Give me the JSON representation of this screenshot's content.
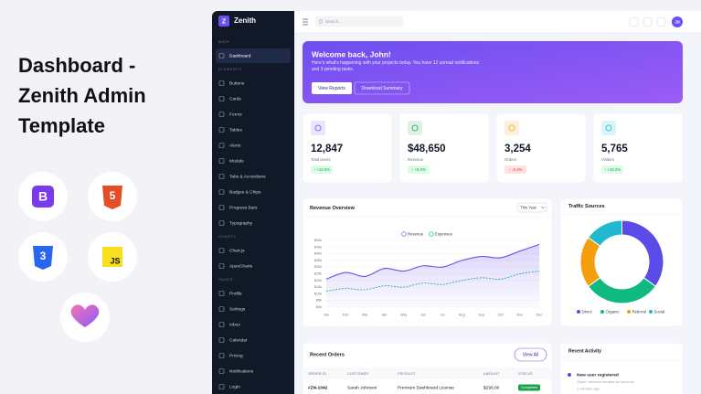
{
  "promo": {
    "title_lines": [
      "Dashboard -",
      "Zenith Admin",
      "Template"
    ],
    "tech_icons": [
      "B",
      "5",
      "3",
      "JS"
    ]
  },
  "sidebar": {
    "brand_logo": "Z",
    "brand": "Zenith",
    "sections": [
      {
        "heading": "MAIN",
        "items": [
          "Dashboard"
        ]
      },
      {
        "heading": "ELEMENTS",
        "items": [
          "Buttons",
          "Cards",
          "Forms",
          "Tables",
          "Alerts",
          "Modals",
          "Tabs & Accordions",
          "Badges & Chips",
          "Progress Bars",
          "Typography"
        ]
      },
      {
        "heading": "CHARTS",
        "items": [
          "Chart.js",
          "ApexCharts"
        ]
      },
      {
        "heading": "PAGES",
        "items": [
          "Profile",
          "Settings",
          "Inbox",
          "Calendar",
          "Pricing",
          "Notifications",
          "Login"
        ]
      }
    ]
  },
  "topbar": {
    "search_placeholder": "Search...",
    "avatar": "JD"
  },
  "welcome": {
    "title": "Welcome back, John!",
    "text": "Here's what's happening with your projects today. You have 12 unread notifications and 3 pending tasks.",
    "buttons": [
      "View Reports",
      "Download Summary"
    ]
  },
  "stats": [
    {
      "value": "12,847",
      "label": "Total Users",
      "change": "↑ +12.5%",
      "trend": "up",
      "color": "#6d4ef0"
    },
    {
      "value": "$48,650",
      "label": "Revenue",
      "change": "↑ +8.3%",
      "trend": "up",
      "color": "#16a34a"
    },
    {
      "value": "3,254",
      "label": "Orders",
      "change": "↓ -2.1%",
      "trend": "down",
      "color": "#f59e0b"
    },
    {
      "value": "5,765",
      "label": "Visitors",
      "change": "↑ +18.2%",
      "trend": "up",
      "color": "#06b6d4"
    }
  ],
  "revenue_chart": {
    "type": "line",
    "title": "Revenue Overview",
    "period": "This Year",
    "categories": [
      "Jan",
      "Feb",
      "Mar",
      "Apr",
      "May",
      "Jun",
      "Jul",
      "Aug",
      "Sep",
      "Oct",
      "Nov",
      "Dec"
    ],
    "series": [
      {
        "name": "Revenue",
        "color": "#6d4ef0",
        "values": [
          21,
          26,
          23,
          29,
          27,
          31,
          30,
          35,
          38,
          37,
          42,
          47
        ]
      },
      {
        "name": "Expenses",
        "color": "#14b8a6",
        "values": [
          12,
          14,
          13,
          16,
          15,
          18,
          17,
          20,
          22,
          21,
          25,
          27
        ]
      }
    ],
    "ylim": [
      0,
      50
    ],
    "yticks": [
      {
        "value": 0,
        "label": "$0k"
      },
      {
        "value": 5,
        "label": "$5k"
      },
      {
        "value": 10,
        "label": "$10k"
      },
      {
        "value": 15,
        "label": "$15k"
      },
      {
        "value": 20,
        "label": "$20k"
      },
      {
        "value": 25,
        "label": "$25k"
      },
      {
        "value": 30,
        "label": "$30k"
      },
      {
        "value": 35,
        "label": "$35k"
      },
      {
        "value": 40,
        "label": "$40k"
      },
      {
        "value": 45,
        "label": "$45k"
      },
      {
        "value": 50,
        "label": "$50k"
      }
    ],
    "grid": true
  },
  "traffic_chart": {
    "type": "donut",
    "title": "Traffic Sources",
    "categories": [
      "Direct",
      "Organic",
      "Referral",
      "Social"
    ],
    "values": [
      35,
      30,
      20,
      15
    ],
    "colors": [
      "#5b4be8",
      "#10b981",
      "#f59e0b",
      "#22b8cf"
    ]
  },
  "orders": {
    "title": "Recent Orders",
    "button": "View All",
    "columns": [
      "ORDER ID",
      "CUSTOMER",
      "PRODUCT",
      "AMOUNT",
      "STATUS"
    ],
    "rows": [
      [
        "#ZN-1042",
        "Sarah Johnson",
        "Premium Dashboard License",
        "$299.00",
        "Completed"
      ]
    ]
  },
  "activity": {
    "title": "Recent Activity",
    "items": [
      {
        "title": "New user registered",
        "text": "Sarah Johnson created an account",
        "time": "2 minutes ago"
      }
    ]
  }
}
